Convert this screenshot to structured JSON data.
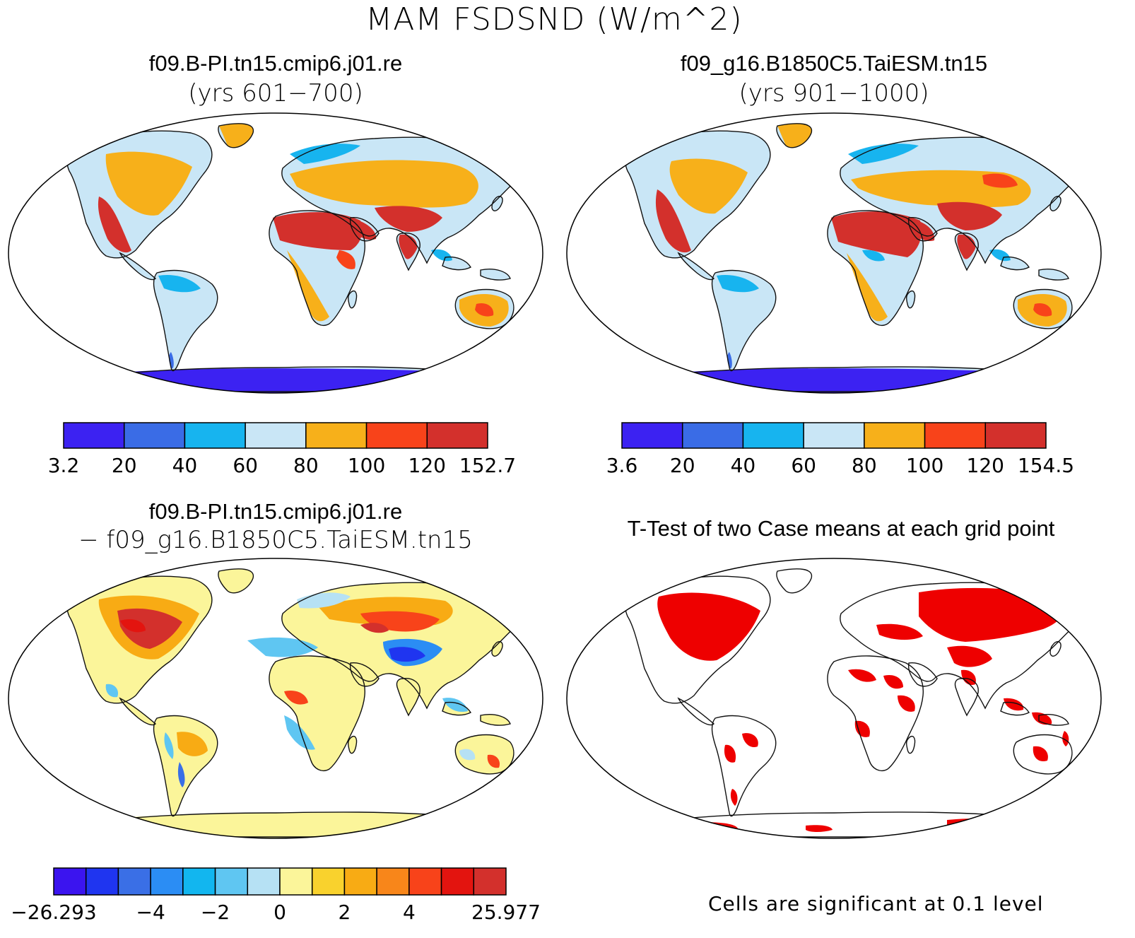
{
  "figure": {
    "title": "MAM FSDSND (W/m^2)"
  },
  "panels": {
    "case1": {
      "title": "f09.B-PI.tn15.cmip6.j01.re",
      "subtitle": "(yrs 601−700)",
      "colorbar": {
        "labels": [
          "3.2",
          "20",
          "40",
          "60",
          "80",
          "100",
          "120",
          "152.7"
        ],
        "colors": [
          "#3c22f2",
          "#3a6ce6",
          "#17b4ef",
          "#c9e6f6",
          "#f7b01a",
          "#f8431a",
          "#d3302c"
        ]
      }
    },
    "case2": {
      "title": "f09_g16.B1850C5.TaiESM.tn15",
      "subtitle": "(yrs 901−1000)",
      "colorbar": {
        "labels": [
          "3.6",
          "20",
          "40",
          "60",
          "80",
          "100",
          "120",
          "154.5"
        ],
        "colors": [
          "#3c22f2",
          "#3a6ce6",
          "#17b4ef",
          "#c9e6f6",
          "#f7b01a",
          "#f8431a",
          "#d3302c"
        ]
      }
    },
    "diff": {
      "title": "f09.B-PI.tn15.cmip6.j01.re",
      "subtitle": "− f09_g16.B1850C5.TaiESM.tn15",
      "colorbar": {
        "labels": [
          "−26.293",
          "−4",
          "−2",
          "0",
          "2",
          "4",
          "25.977"
        ],
        "colors": [
          "#3b14ef",
          "#1f35f0",
          "#3a6fe6",
          "#2b8df4",
          "#12b6ef",
          "#5fc6f2",
          "#b6e1f4",
          "#fbf59a",
          "#f9d22d",
          "#f8ab14",
          "#f8861a",
          "#f8431a",
          "#e3140f",
          "#d3302c"
        ]
      }
    },
    "ttest": {
      "title": "T-Test of two Case means at each grid point",
      "note": "Cells are significant at 0.1 level",
      "significant_color": "#ee0000"
    }
  }
}
